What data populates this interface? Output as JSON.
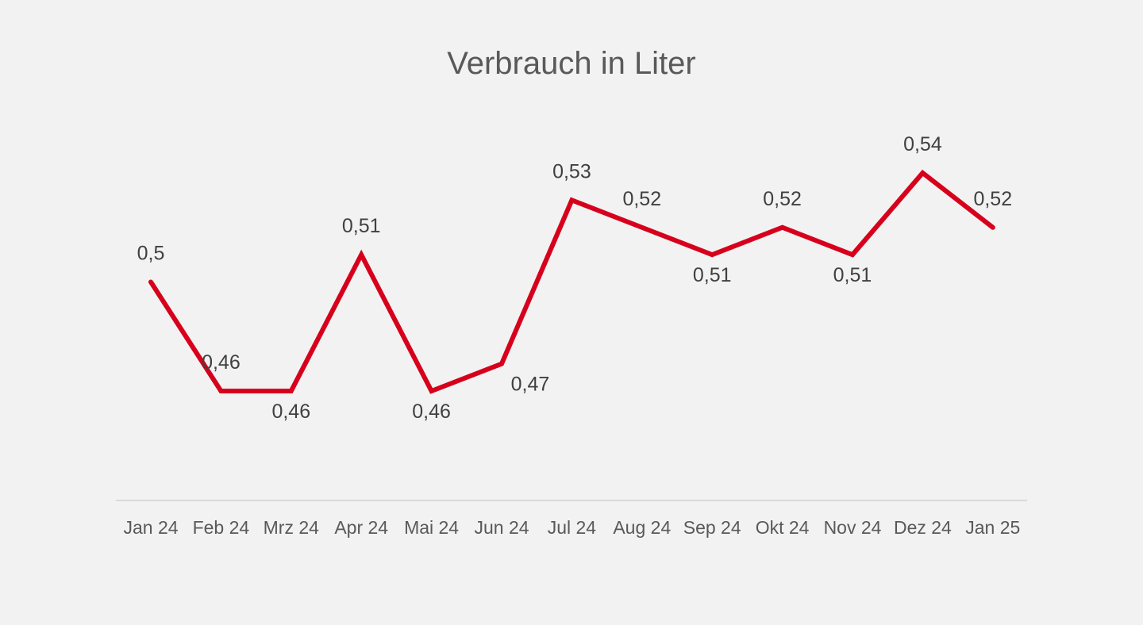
{
  "chart_data": {
    "type": "line",
    "title": "Verbrauch in Liter",
    "categories": [
      "Jan 24",
      "Feb 24",
      "Mrz 24",
      "Apr 24",
      "Mai 24",
      "Jun 24",
      "Jul 24",
      "Aug 24",
      "Sep 24",
      "Okt 24",
      "Nov 24",
      "Dez 24",
      "Jan 25"
    ],
    "series": [
      {
        "values": [
          0.5,
          0.46,
          0.46,
          0.51,
          0.46,
          0.47,
          0.53,
          0.52,
          0.51,
          0.52,
          0.51,
          0.54,
          0.52
        ],
        "labels": [
          "0,5",
          "0,46",
          "0,46",
          "0,51",
          "0,46",
          "0,47",
          "0,53",
          "0,52",
          "0,51",
          "0,52",
          "0,51",
          "0,54",
          "0,52"
        ],
        "color": "#d6001c"
      }
    ],
    "grid": false,
    "legend": "none",
    "axis_color": "#d9d9d9"
  }
}
